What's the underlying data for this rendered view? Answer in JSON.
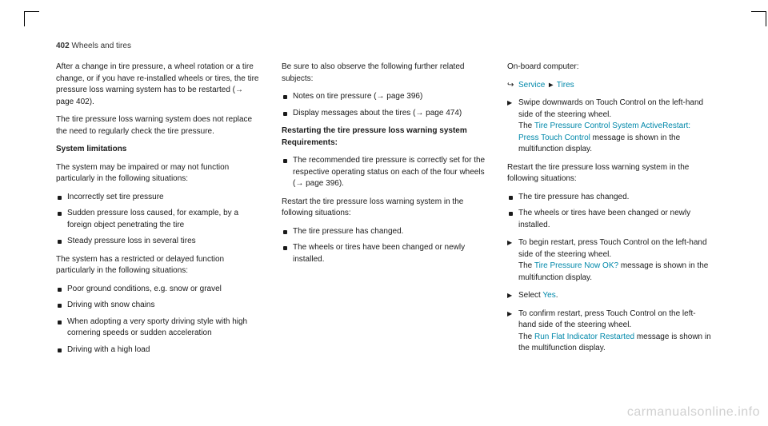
{
  "header": {
    "pagenum": "402",
    "section": "Wheels and tires"
  },
  "col1": {
    "p1": "After a change in tire pressure, a wheel rotation or a tire change, or if you have re-installed wheels or tires, the tire pressure loss warning system has to be restarted (→ page 402).",
    "p2": "The tire pressure loss warning system does not replace the need to regularly check the tire pressure.",
    "h1": "System limitations",
    "p3": "The system may be impaired or may not function particularly in the following situations:",
    "b1": [
      "Incorrectly set tire pressure",
      "Sudden pressure loss caused, for example, by a foreign object penetrating the tire",
      "Steady pressure loss in several tires"
    ],
    "p4": "The system has a restricted or delayed function particularly in the following situations:",
    "b2": [
      "Poor ground conditions, e.g. snow or gravel",
      "Driving with snow chains",
      "When adopting a very sporty driving style with high cornering speeds or sudden acceleration",
      "Driving with a high load"
    ]
  },
  "col2": {
    "p1": "Be sure to also observe the following further related subjects:",
    "b1": [
      "Notes on tire pressure (→ page 396)",
      "Display messages about the tires (→ page 474)"
    ],
    "h1a": "Restarting the tire pressure loss warning system",
    "h1b": "Requirements:",
    "b2": [
      "The recommended tire pressure is correctly set for the respective operating status on each of the four wheels (→ page 396)."
    ],
    "p2": "Restart the tire pressure loss warning system in the following situations:",
    "b3": [
      "The tire pressure has changed.",
      "The wheels or tires have been changed or newly installed."
    ]
  },
  "col3": {
    "p0": "On-board computer:",
    "nav_service": "Service",
    "nav_tires": "Tires",
    "a1_pre": "Swipe downwards on Touch Control on the left-hand side of the steering wheel.",
    "a1_the": "The ",
    "a1_link": "Tire Pressure Control System ActiveRestart: Press Touch Control",
    "a1_post": " message is shown in the multifunction display.",
    "p1": "Restart the tire pressure loss warning system in the following situations:",
    "b1": [
      "The tire pressure has changed.",
      "The wheels or tires have been changed or newly installed."
    ],
    "a2_pre": "To begin restart, press Touch Control on the left-hand side of the steering wheel.",
    "a2_the": "The ",
    "a2_link": "Tire Pressure Now OK?",
    "a2_post": " message is shown in the multifunction display.",
    "a3_pre": "Select ",
    "a3_link": "Yes",
    "a3_post": ".",
    "a4_pre": "To confirm restart, press Touch Control on the left-hand side of the steering wheel.",
    "a4_the": "The ",
    "a4_link": "Run Flat Indicator Restarted",
    "a4_post": " message is shown in the multifunction display."
  },
  "watermark": "carmanualsonline.info"
}
